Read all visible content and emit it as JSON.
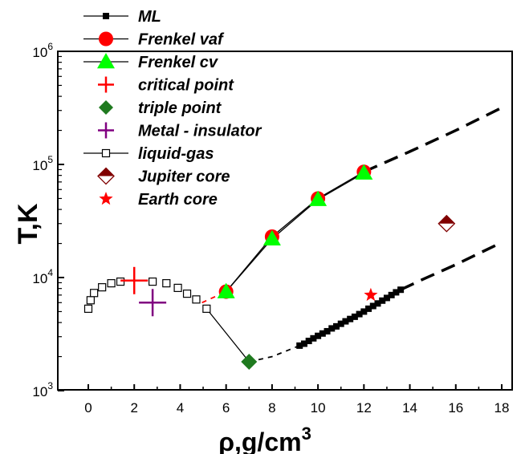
{
  "chart_data": {
    "type": "scatter",
    "xlabel": "ρ,g/cm",
    "xlabel_sup": "3",
    "ylabel": "T,K",
    "y_scale": "log",
    "xlim": [
      -1,
      19
    ],
    "ylim": [
      1000,
      1000000
    ],
    "x_ticks": [
      0,
      2,
      4,
      6,
      8,
      10,
      12,
      14,
      16,
      18
    ],
    "y_ticks": [
      {
        "value": 1000,
        "base": "10",
        "exp": "3"
      },
      {
        "value": 10000,
        "base": "10",
        "exp": "4"
      },
      {
        "value": 100000,
        "base": "10",
        "exp": "5"
      },
      {
        "value": 1000000,
        "base": "10",
        "exp": "6"
      }
    ],
    "legend_position": "top-left",
    "series": [
      {
        "name": "ML",
        "marker": "square-filled",
        "color": "#000000",
        "points": [
          [
            9.2,
            2500
          ],
          [
            9.4,
            2600
          ],
          [
            9.6,
            2750
          ],
          [
            9.8,
            2900
          ],
          [
            10.0,
            3050
          ],
          [
            10.2,
            3200
          ],
          [
            10.4,
            3350
          ],
          [
            10.6,
            3550
          ],
          [
            10.8,
            3700
          ],
          [
            11.0,
            3900
          ],
          [
            11.2,
            4100
          ],
          [
            11.4,
            4300
          ],
          [
            11.6,
            4500
          ],
          [
            11.8,
            4750
          ],
          [
            12.0,
            5000
          ],
          [
            12.2,
            5300
          ],
          [
            12.4,
            5600
          ],
          [
            12.6,
            5900
          ],
          [
            12.8,
            6250
          ],
          [
            13.0,
            6600
          ],
          [
            13.2,
            7000
          ],
          [
            13.4,
            7400
          ],
          [
            13.6,
            7800
          ]
        ]
      },
      {
        "name": "Frenkel vaf",
        "marker": "circle",
        "color": "#ff0000",
        "points": [
          [
            6,
            7500
          ],
          [
            8,
            23000
          ],
          [
            10,
            50000
          ],
          [
            12,
            86000
          ]
        ]
      },
      {
        "name": "Frenkel cv",
        "marker": "triangle",
        "color": "#00ff00",
        "points": [
          [
            6,
            7500
          ],
          [
            8,
            22000
          ],
          [
            10,
            49000
          ],
          [
            12,
            84000
          ]
        ]
      },
      {
        "name": "critical point",
        "marker": "plus",
        "color": "#ff0000",
        "points": [
          [
            2,
            9400
          ]
        ]
      },
      {
        "name": "triple point",
        "marker": "diamond",
        "color": "#1f7a1f",
        "points": [
          [
            7,
            1800
          ]
        ]
      },
      {
        "name": "Metal - insulator",
        "marker": "plus",
        "color": "#800080",
        "points": [
          [
            2.8,
            6000
          ]
        ]
      },
      {
        "name": "liquid-gas",
        "marker": "square-open",
        "color": "#000000",
        "points": [
          [
            0,
            5300
          ],
          [
            0.1,
            6300
          ],
          [
            0.25,
            7300
          ],
          [
            0.6,
            8200
          ],
          [
            1.0,
            8900
          ],
          [
            1.4,
            9200
          ],
          [
            2.8,
            9200
          ],
          [
            3.4,
            8900
          ],
          [
            3.9,
            8100
          ],
          [
            4.3,
            7200
          ],
          [
            4.7,
            6400
          ],
          [
            5.15,
            5300
          ]
        ]
      },
      {
        "name": "Jupiter core",
        "marker": "diamond-half",
        "color": "#800000",
        "points": [
          [
            15.6,
            30000
          ]
        ]
      },
      {
        "name": "Earth core",
        "marker": "star",
        "color": "#ff0000",
        "points": [
          [
            12.3,
            7000
          ]
        ]
      }
    ],
    "lines": [
      {
        "style": "solid",
        "color": "#000000",
        "points": [
          [
            5.15,
            5300
          ],
          [
            7,
            1800
          ]
        ]
      },
      {
        "style": "solid",
        "color": "#000000",
        "points": [
          [
            6,
            7500
          ],
          [
            8,
            23000
          ],
          [
            10,
            50000
          ],
          [
            12,
            86000
          ]
        ]
      },
      {
        "style": "solid",
        "color": "#000000",
        "points": [
          [
            6,
            7500
          ],
          [
            8,
            22000
          ],
          [
            10,
            49000
          ],
          [
            12,
            84000
          ]
        ]
      },
      {
        "style": "dashed",
        "color": "#000000",
        "points": [
          [
            7,
            1800
          ],
          [
            8,
            2000
          ],
          [
            9.2,
            2500
          ]
        ]
      },
      {
        "style": "dashed-bold",
        "color": "#000000",
        "points": [
          [
            13.6,
            7800
          ],
          [
            14.5,
            9500
          ],
          [
            16,
            13000
          ],
          [
            17.9,
            20000
          ]
        ]
      },
      {
        "style": "dashed-bold",
        "color": "#000000",
        "points": [
          [
            12,
            86000
          ],
          [
            14,
            130000
          ],
          [
            16,
            200000
          ],
          [
            17.9,
            310000
          ]
        ]
      },
      {
        "style": "dashed",
        "color": "#ff0000",
        "points": [
          [
            4.95,
            6000
          ],
          [
            6,
            7500
          ]
        ]
      }
    ]
  }
}
